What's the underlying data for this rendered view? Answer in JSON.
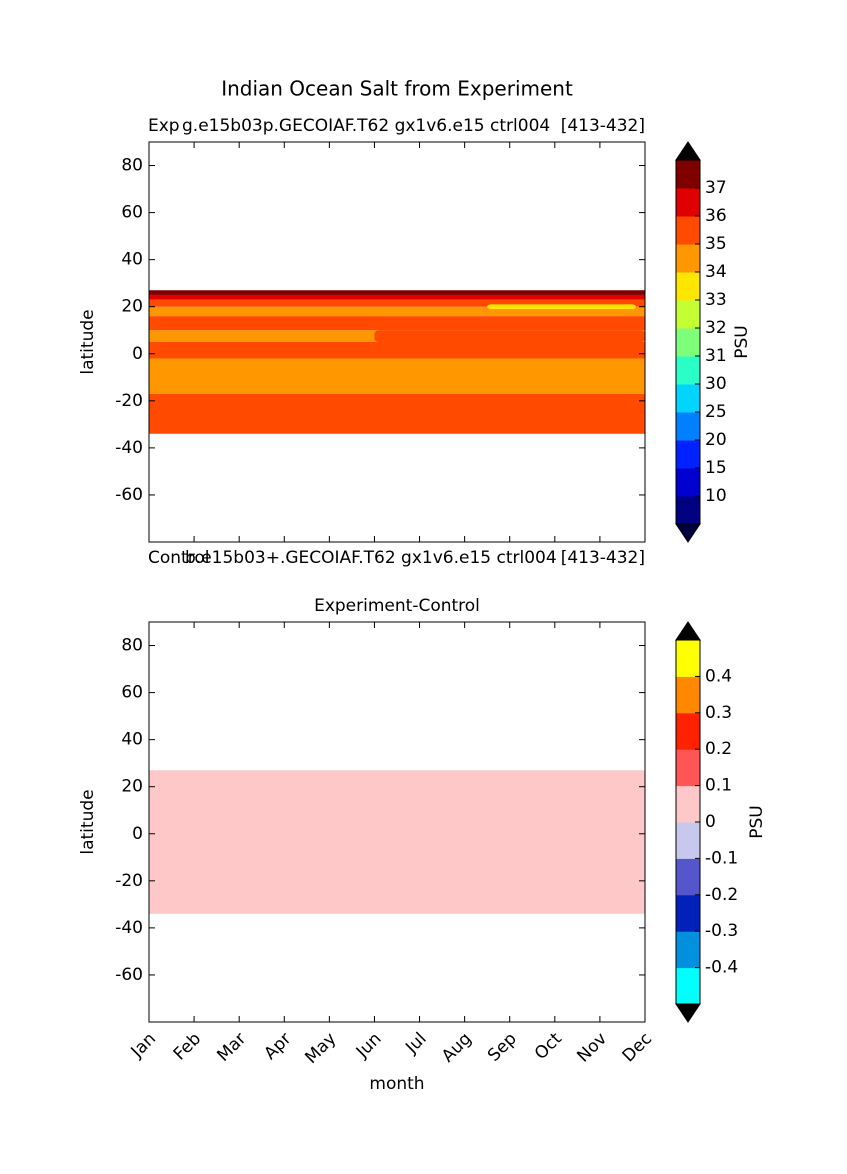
{
  "title": "Indian Ocean Salt from Experiment",
  "chart_data": [
    {
      "type": "contour",
      "left_label": "Exp",
      "center_label": "g.e15b03p.GECOIAF.T62 gx1v6.e15 ctrl004",
      "right_label": "[413-432]",
      "ylabel": "latitude",
      "ylim": [
        -80,
        90
      ],
      "yticks": [
        -60,
        -40,
        -20,
        0,
        20,
        40,
        60,
        80
      ],
      "bands": [
        {
          "from": -34,
          "to": -17,
          "level": 35
        },
        {
          "from": -17,
          "to": -2,
          "level": 34
        },
        {
          "from": -2,
          "to": 5,
          "level": 35
        },
        {
          "from": 5,
          "to": 10,
          "level": 34
        },
        {
          "from": 10,
          "to": 16,
          "level": 35
        },
        {
          "from": 16,
          "to": 20,
          "level": 34
        },
        {
          "from": 20,
          "to": 23,
          "level": 35
        },
        {
          "from": 23,
          "to": 25,
          "level": 36
        },
        {
          "from": 25,
          "to": 27,
          "level": 37
        }
      ],
      "patches": [
        {
          "x": [
            5,
            11
          ],
          "from": 5,
          "to": 10,
          "level": 35
        },
        {
          "x": [
            7.5,
            10.8
          ],
          "from": 19,
          "to": 21,
          "level": 33
        }
      ],
      "colorbar": {
        "label": "PSU",
        "levels": [
          10,
          15,
          20,
          25,
          30,
          31,
          32,
          33,
          34,
          35,
          36,
          37
        ],
        "colors": [
          "#000080",
          "#0000d0",
          "#0022ff",
          "#0080ff",
          "#00d4ff",
          "#2bffc8",
          "#7dff7a",
          "#c4ff33",
          "#ffe600",
          "#ff9800",
          "#ff4a00",
          "#e00000",
          "#800000"
        ],
        "under": "#000040",
        "over": "#000000"
      }
    },
    {
      "type": "contour",
      "title": "Experiment-Control",
      "left_label": "Control",
      "center_label": "b.e15b03+.GECOIAF.T62 gx1v6.e15 ctrl004",
      "right_label": "[413-432]",
      "ylabel": "latitude",
      "xlabel": "month",
      "ylim": [
        -80,
        90
      ],
      "yticks": [
        -60,
        -40,
        -20,
        0,
        20,
        40,
        60,
        80
      ],
      "categories": [
        "Jan",
        "Feb",
        "Mar",
        "Apr",
        "May",
        "Jun",
        "Jul",
        "Aug",
        "Sep",
        "Oct",
        "Nov",
        "Dec"
      ],
      "bands": [
        {
          "from": -34,
          "to": 27,
          "level": 0
        }
      ],
      "patches": [],
      "colorbar": {
        "label": "PSU",
        "levels": [
          -0.4,
          -0.3,
          -0.2,
          -0.1,
          0,
          0.1,
          0.2,
          0.3,
          0.4
        ],
        "colors": [
          "#00ffff",
          "#0090dd",
          "#0022bb",
          "#5555cc",
          "#c8c8ee",
          "#ffc8c8",
          "#ff5555",
          "#ff2200",
          "#ff8800",
          "#ffff00"
        ],
        "under": "#000000",
        "over": "#000000"
      }
    }
  ]
}
